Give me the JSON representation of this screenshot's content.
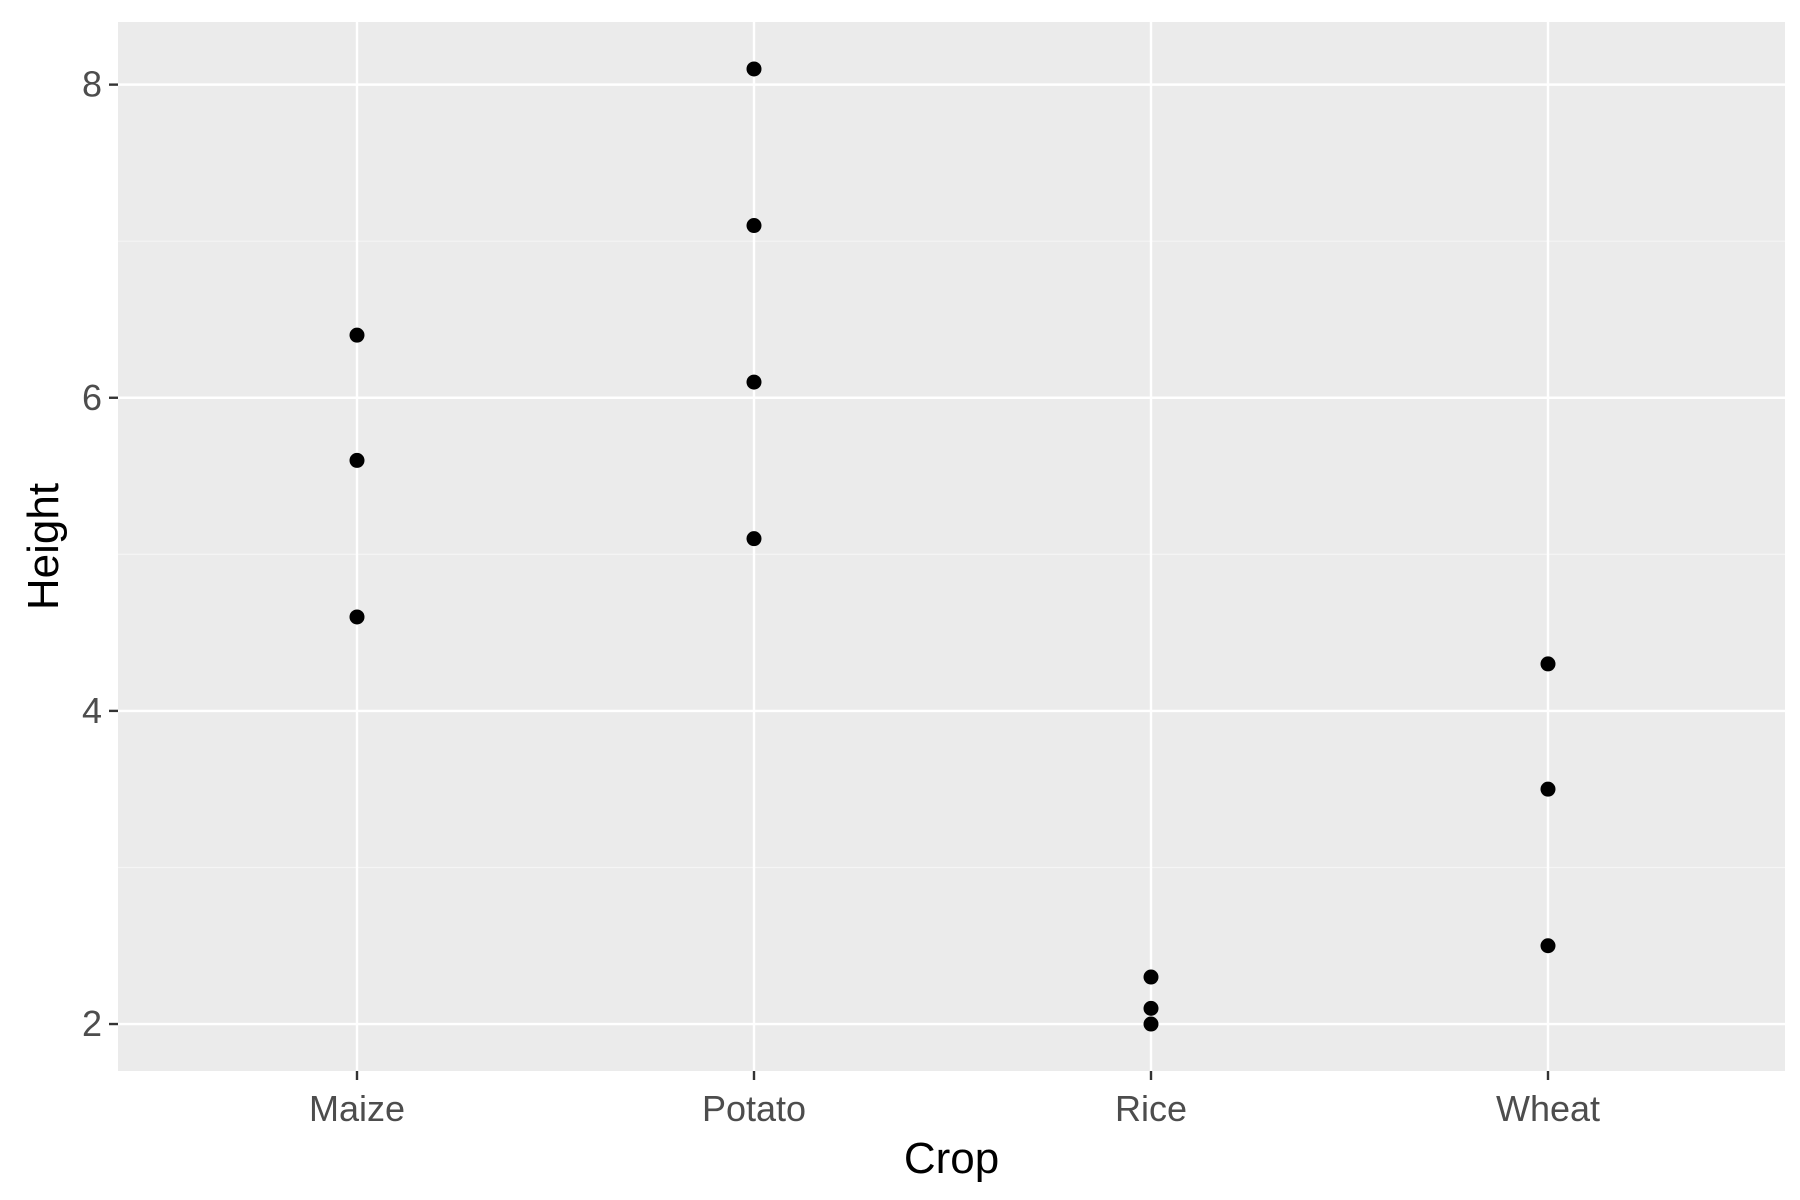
{
  "chart_data": {
    "type": "scatter",
    "title": "",
    "xlabel": "Crop",
    "ylabel": "Height",
    "categories": [
      "Maize",
      "Potato",
      "Rice",
      "Wheat"
    ],
    "points": [
      {
        "x": "Maize",
        "y": 6.4
      },
      {
        "x": "Maize",
        "y": 5.6
      },
      {
        "x": "Maize",
        "y": 4.6
      },
      {
        "x": "Potato",
        "y": 8.1
      },
      {
        "x": "Potato",
        "y": 7.1
      },
      {
        "x": "Potato",
        "y": 6.1
      },
      {
        "x": "Potato",
        "y": 5.1
      },
      {
        "x": "Rice",
        "y": 2.3
      },
      {
        "x": "Rice",
        "y": 2.1
      },
      {
        "x": "Rice",
        "y": 2.0
      },
      {
        "x": "Wheat",
        "y": 4.3
      },
      {
        "x": "Wheat",
        "y": 3.5
      },
      {
        "x": "Wheat",
        "y": 2.5
      }
    ],
    "y_ticks": [
      2,
      4,
      6,
      8
    ],
    "y_tick_labels": [
      "2",
      "4",
      "6",
      "8"
    ],
    "ylim": [
      1.7,
      8.4
    ],
    "grid": true,
    "legend": "none",
    "colors": {
      "panel_background": "#ebebeb",
      "grid_major": "#ffffff",
      "grid_minor": "#f5f5f5",
      "point": "#000000",
      "tick_mark": "#333333",
      "tick_label": "#4d4d4d",
      "axis_title": "#000000"
    }
  }
}
